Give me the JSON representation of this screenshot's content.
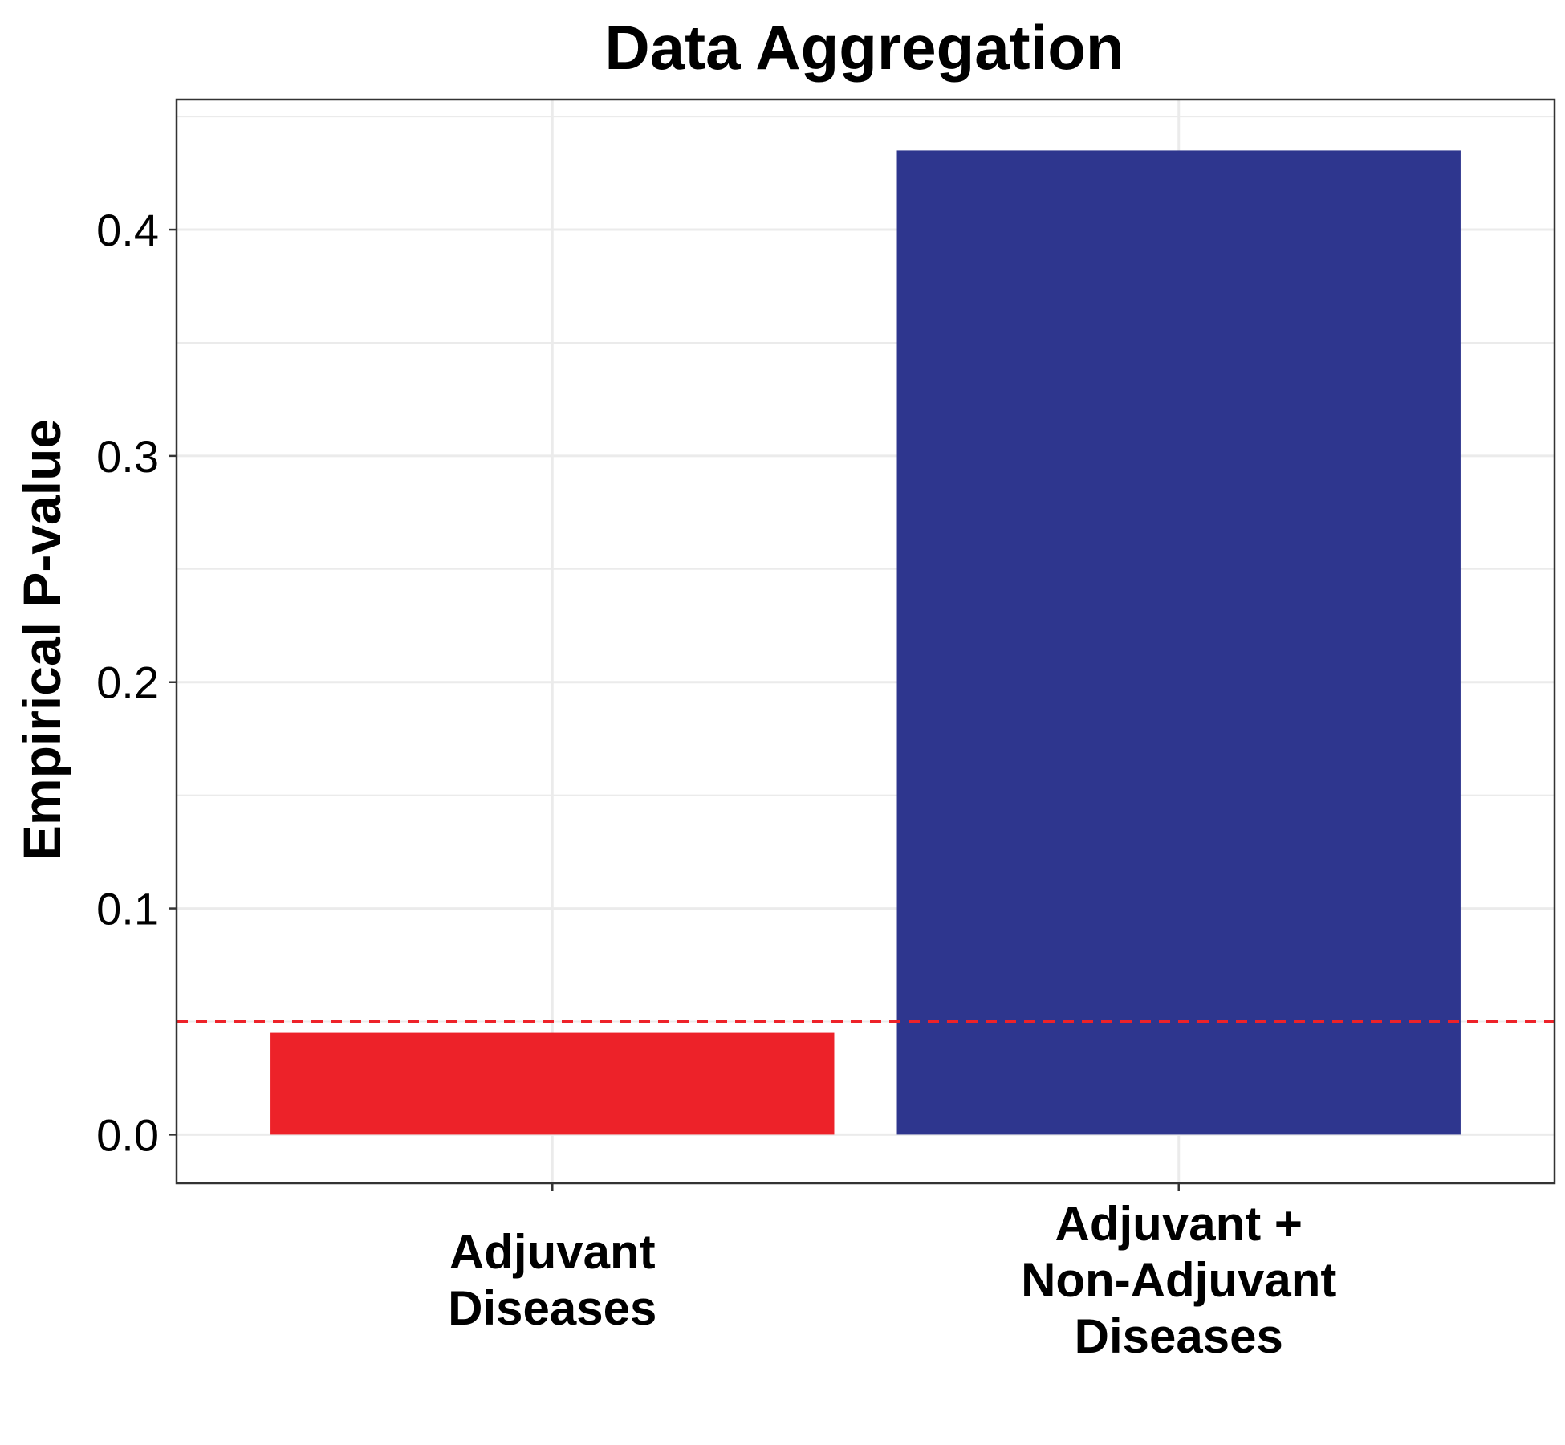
{
  "chart_data": {
    "type": "bar",
    "title": "Data Aggregation",
    "xlabel": "",
    "ylabel": "Empirical P-value",
    "categories": [
      [
        "Adjuvant",
        "Diseases"
      ],
      [
        "Adjuvant +",
        "Non-Adjuvant",
        "Diseases"
      ]
    ],
    "values": [
      0.045,
      0.435
    ],
    "colors": [
      "#ed2229",
      "#2e368e"
    ],
    "ylim": [
      -0.0215,
      0.4575
    ],
    "yticks": [
      0.0,
      0.1,
      0.2,
      0.3,
      0.4
    ],
    "ytick_labels": [
      "0.0",
      "0.1",
      "0.2",
      "0.3",
      "0.4"
    ],
    "reference_line": {
      "y": 0.05,
      "color": "#ed2229",
      "style": "dashed"
    },
    "grid": true,
    "legend": "none"
  }
}
